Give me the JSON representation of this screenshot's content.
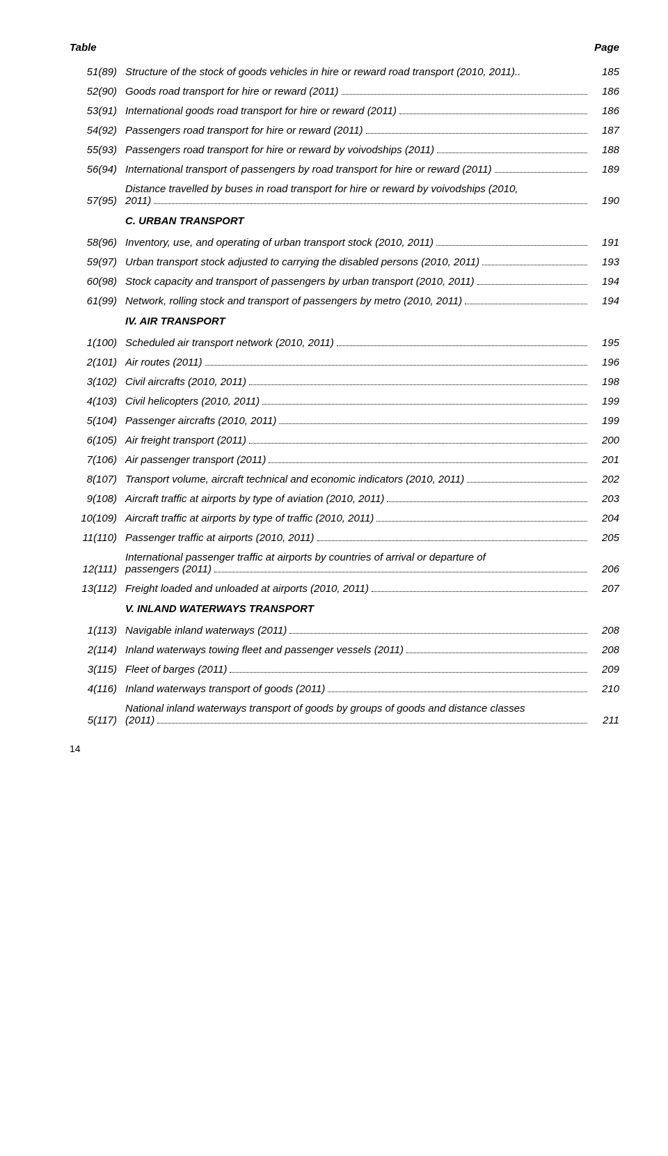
{
  "header": {
    "left": "Table",
    "right": "Page"
  },
  "entries": [
    {
      "num": "51(89)",
      "text": "Structure of the stock of goods vehicles in  hire or reward road transport (2010, 2011)..",
      "page": "185",
      "dots": false
    },
    {
      "num": "52(90)",
      "text": "Goods road transport  for hire or reward (2011)",
      "page": "186",
      "dots": true
    },
    {
      "num": "53(91)",
      "text": "International goods road transport  for hire or reward (2011)",
      "page": "186",
      "dots": true
    },
    {
      "num": "54(92)",
      "text": "Passengers road transport  for hire or reward (2011)",
      "page": "187",
      "dots": true
    },
    {
      "num": "55(93)",
      "text": "Passengers road transport  for hire or reward by voivodships (2011)",
      "page": "188",
      "dots": true
    },
    {
      "num": "56(94)",
      "text": "International transport of passengers by road transport  for hire or reward (2011)",
      "page": "189",
      "dots": true
    },
    {
      "num": "57(95)",
      "text": "Distance travelled by buses in road transport for hire or reward by voivodships (2010,",
      "text2": "2011)",
      "page": "190",
      "dots": true,
      "multiline": true
    }
  ],
  "sectionC": "C. URBAN TRANSPORT",
  "entriesC": [
    {
      "num": "58(96)",
      "text": "Inventory, use, and operating of urban transport stock (2010, 2011)",
      "page": "191",
      "dots": true
    },
    {
      "num": "59(97)",
      "text": "Urban transport stock adjusted to carrying the disabled persons (2010, 2011)",
      "page": "193",
      "dots": true
    },
    {
      "num": "60(98)",
      "text": "Stock capacity and transport of passengers by urban transport (2010, 2011)",
      "page": "194",
      "dots": true
    },
    {
      "num": "61(99)",
      "text": "Network, rolling stock and transport of passengers by metro (2010, 2011)",
      "page": "194",
      "dots": true
    }
  ],
  "sectionIV": "IV. AIR TRANSPORT",
  "entriesIV": [
    {
      "num": "1(100)",
      "text": "Scheduled air transport network (2010, 2011)",
      "page": "195",
      "dots": true
    },
    {
      "num": "2(101)",
      "text": "Air routes (2011)",
      "page": "196",
      "dots": true
    },
    {
      "num": "3(102)",
      "text": "Civil aircrafts (2010, 2011)",
      "page": "198",
      "dots": true
    },
    {
      "num": "4(103)",
      "text": "Civil helicopters (2010, 2011)",
      "page": "199",
      "dots": true
    },
    {
      "num": "5(104)",
      "text": "Passenger aircrafts (2010, 2011)",
      "page": "199",
      "dots": true
    },
    {
      "num": "6(105)",
      "text": "Air freight transport (2011)",
      "page": "200",
      "dots": true
    },
    {
      "num": "7(106)",
      "text": "Air passenger transport (2011)",
      "page": "201",
      "dots": true
    },
    {
      "num": "8(107)",
      "text": "Transport volume, aircraft technical and economic indicators (2010, 2011)",
      "page": "202",
      "dots": true
    },
    {
      "num": "9(108)",
      "text": "Aircraft traffic at airports by type of aviation (2010, 2011)",
      "page": "203",
      "dots": true
    },
    {
      "num": "10(109)",
      "text": "Aircraft traffic at airports by type of traffic (2010, 2011)",
      "page": "204",
      "dots": true
    },
    {
      "num": "11(110)",
      "text": "Passenger traffic at airports (2010, 2011)",
      "page": "205",
      "dots": true
    },
    {
      "num": "12(111)",
      "text": "International passenger traffic at airports by countries of arrival or departure of",
      "text2": "passengers (2011)",
      "page": "206",
      "dots": true,
      "multiline": true
    },
    {
      "num": "13(112)",
      "text": "Freight loaded and unloaded at airports (2010, 2011)",
      "page": "207",
      "dots": true
    }
  ],
  "sectionV": "V. INLAND WATERWAYS TRANSPORT",
  "entriesV": [
    {
      "num": "1(113)",
      "text": "Navigable inland waterways (2011)",
      "page": "208",
      "dots": true
    },
    {
      "num": "2(114)",
      "text": "Inland waterways towing fleet and passenger vessels (2011)",
      "page": "208",
      "dots": true
    },
    {
      "num": "3(115)",
      "text": "Fleet of barges (2011)",
      "page": "209",
      "dots": true
    },
    {
      "num": "4(116)",
      "text": "Inland waterways transport of goods (2011)",
      "page": "210",
      "dots": true
    },
    {
      "num": "5(117)",
      "text": "National inland waterways transport of goods by groups of goods and distance classes",
      "text2": "(2011)",
      "page": "211",
      "dots": true,
      "multiline": true
    }
  ],
  "footer": "14"
}
